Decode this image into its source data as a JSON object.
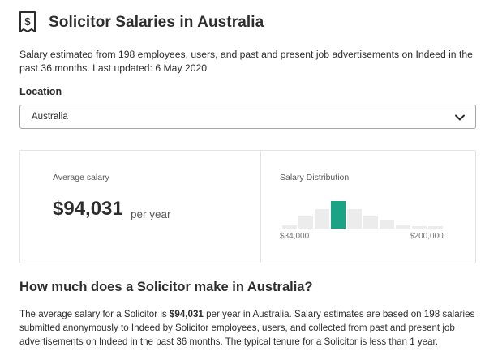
{
  "header": {
    "title": "Solicitor Salaries in Australia",
    "icon": "salary-document-icon"
  },
  "intro": "Salary estimated from 198 employees, users, and past and present job advertisements on Indeed in the past 36 months. Last updated: 6 May 2020",
  "location": {
    "label": "Location",
    "selected": "Australia",
    "icon": "chevron-down-icon"
  },
  "average": {
    "label": "Average salary",
    "value": "$94,031",
    "period": "per year"
  },
  "distribution": {
    "label": "Salary Distribution",
    "min_label": "$34,000",
    "max_label": "$200,000",
    "active_index": 3,
    "active_color": "#1aa384",
    "inactive_color": "#ececec",
    "bar_levels": [
      0.12,
      0.45,
      0.72,
      1.0,
      0.72,
      0.45,
      0.3,
      0.12,
      0.1,
      0.07
    ]
  },
  "faq": {
    "title": "How much does a Solicitor make in Australia?",
    "body_prefix": "The average salary for a Solicitor is ",
    "body_bold": "$94,031",
    "body_suffix": " per year in Australia. Salary estimates are based on 198 salaries submitted anonymously to Indeed by Solicitor employees, users, and collected from past and present job advertisements on Indeed in the past 36 months. The typical tenure for a Solicitor is less than 1 year."
  }
}
